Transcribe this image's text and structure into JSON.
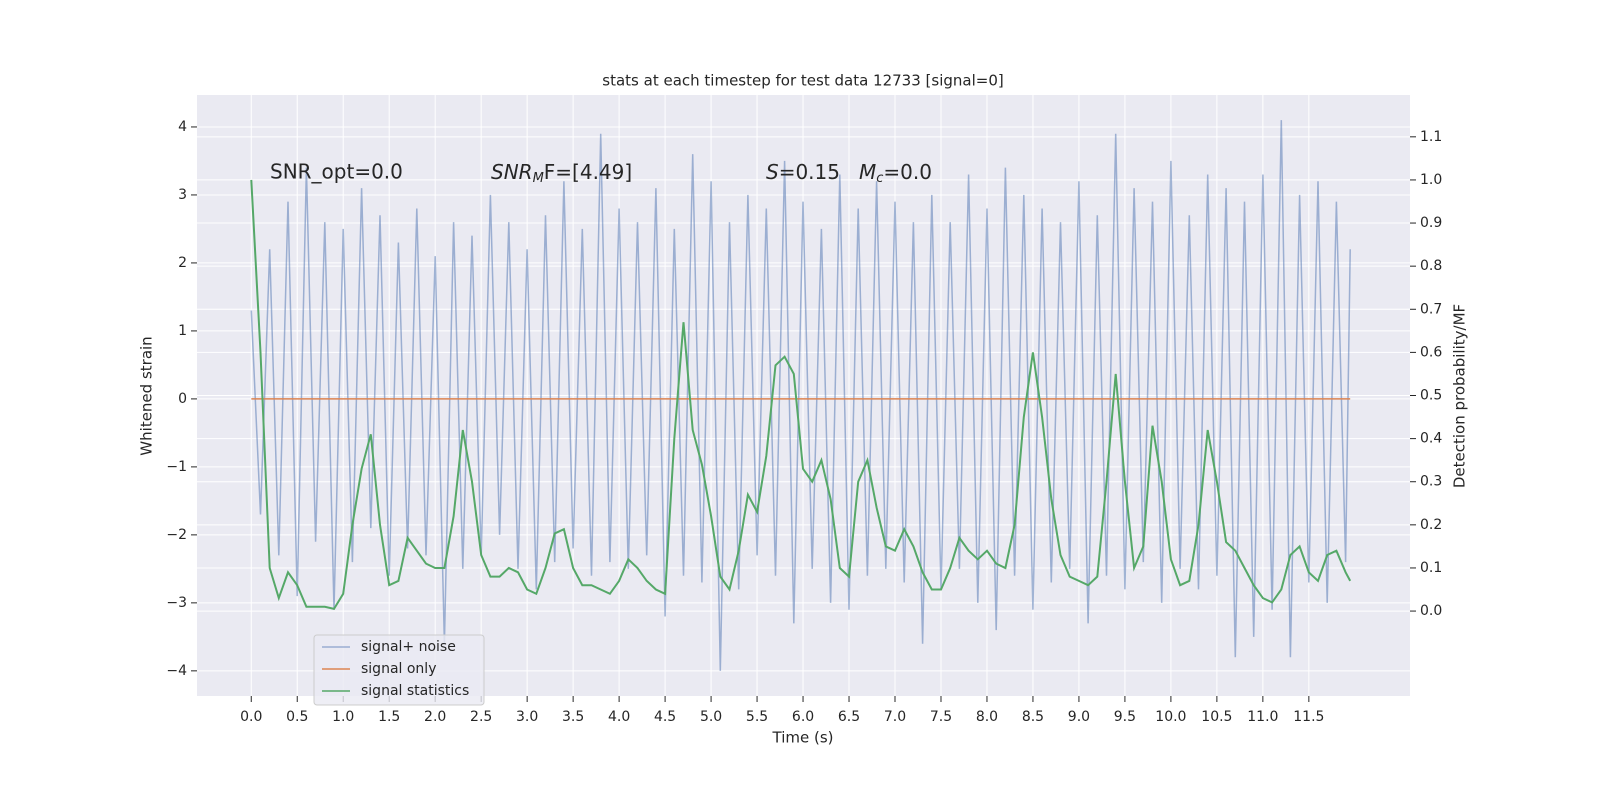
{
  "chart_data": {
    "type": "line",
    "title": "stats at each timestep for test data 12733 [signal=0]",
    "xlabel": "Time (s)",
    "ylabel": "Whitened strain",
    "y2label": "Detection probability/MF",
    "annotations": [
      {
        "text": "SNR_opt=0.0"
      },
      {
        "base": "SNR",
        "sub": "M",
        "rest": "F=[4.49]"
      },
      {
        "base": "S",
        "rest": "=0.15"
      },
      {
        "base": "M",
        "sub": "c",
        "rest": "=0.0"
      }
    ],
    "x": [
      0,
      0.1,
      0.2,
      0.3,
      0.4,
      0.5,
      0.6,
      0.7,
      0.8,
      0.9,
      1.0,
      1.1,
      1.2,
      1.3,
      1.4,
      1.5,
      1.6,
      1.7,
      1.8,
      1.9,
      2.0,
      2.1,
      2.2,
      2.3,
      2.4,
      2.5,
      2.6,
      2.7,
      2.8,
      2.9,
      3.0,
      3.1,
      3.2,
      3.3,
      3.4,
      3.5,
      3.6,
      3.7,
      3.8,
      3.9,
      4.0,
      4.1,
      4.2,
      4.3,
      4.4,
      4.5,
      4.6,
      4.7,
      4.8,
      4.9,
      5.0,
      5.1,
      5.2,
      5.3,
      5.4,
      5.5,
      5.6,
      5.7,
      5.8,
      5.9,
      6.0,
      6.1,
      6.2,
      6.3,
      6.4,
      6.5,
      6.6,
      6.7,
      6.8,
      6.9,
      7.0,
      7.1,
      7.2,
      7.3,
      7.4,
      7.5,
      7.6,
      7.7,
      7.8,
      7.9,
      8.0,
      8.1,
      8.2,
      8.3,
      8.4,
      8.5,
      8.6,
      8.7,
      8.8,
      8.9,
      9.0,
      9.1,
      9.2,
      9.3,
      9.4,
      9.5,
      9.6,
      9.7,
      9.8,
      9.9,
      10.0,
      10.1,
      10.2,
      10.3,
      10.4,
      10.5,
      10.6,
      10.7,
      10.8,
      10.9,
      11.0,
      11.1,
      11.2,
      11.3,
      11.4,
      11.5,
      11.6,
      11.7,
      11.8,
      11.9,
      11.95
    ],
    "series": [
      {
        "name": "signal+ noise",
        "color": "#4c72b0",
        "alpha": 0.5,
        "values": [
          1.3,
          -1.7,
          2.2,
          -2.3,
          2.9,
          -2.9,
          3.4,
          -2.1,
          2.6,
          -3.1,
          2.5,
          -2.4,
          3.1,
          -1.9,
          2.7,
          -2.6,
          2.3,
          -2.2,
          2.8,
          -2.3,
          2.1,
          -3.6,
          2.6,
          -2.5,
          2.4,
          -2.3,
          3.0,
          -2.0,
          2.6,
          -2.5,
          2.2,
          -2.8,
          2.7,
          -2.4,
          3.2,
          -2.2,
          2.5,
          -2.6,
          3.9,
          -2.4,
          2.8,
          -2.5,
          2.6,
          -2.3,
          3.1,
          -3.2,
          2.5,
          -2.6,
          3.6,
          -2.7,
          3.2,
          -4.0,
          2.6,
          -2.8,
          3.0,
          -2.3,
          2.8,
          -2.6,
          3.5,
          -3.3,
          2.9,
          -2.5,
          2.5,
          -3.0,
          3.3,
          -3.1,
          2.8,
          -2.6,
          3.2,
          -2.5,
          2.9,
          -2.7,
          2.6,
          -3.6,
          3.0,
          -2.8,
          2.6,
          -2.5,
          3.3,
          -3.0,
          2.8,
          -3.4,
          3.4,
          -2.6,
          3.0,
          -3.1,
          2.8,
          -2.7,
          2.6,
          -2.5,
          3.2,
          -3.3,
          2.7,
          -2.6,
          3.9,
          -2.8,
          3.1,
          -2.4,
          2.9,
          -3.0,
          3.5,
          -2.5,
          2.7,
          -2.8,
          3.3,
          -2.6,
          3.1,
          -3.8,
          2.9,
          -3.5,
          3.3,
          -3.1,
          4.1,
          -3.8,
          3.0,
          -2.7,
          3.2,
          -3.0,
          2.9,
          -2.4,
          2.2
        ]
      },
      {
        "name": "signal only",
        "color": "#dd8452",
        "x": [
          0,
          11.95
        ],
        "values": [
          0,
          0
        ]
      },
      {
        "name": "signal statistics",
        "color": "#55a868",
        "axis": "y2",
        "values": [
          1.0,
          0.6,
          0.1,
          0.03,
          0.09,
          0.06,
          0.01,
          0.01,
          0.01,
          0.005,
          0.04,
          0.2,
          0.33,
          0.41,
          0.2,
          0.06,
          0.07,
          0.17,
          0.14,
          0.11,
          0.1,
          0.1,
          0.22,
          0.42,
          0.3,
          0.13,
          0.08,
          0.08,
          0.1,
          0.09,
          0.05,
          0.04,
          0.1,
          0.18,
          0.19,
          0.1,
          0.06,
          0.06,
          0.05,
          0.04,
          0.07,
          0.12,
          0.1,
          0.07,
          0.05,
          0.04,
          0.4,
          0.67,
          0.42,
          0.34,
          0.22,
          0.08,
          0.05,
          0.14,
          0.27,
          0.23,
          0.36,
          0.57,
          0.59,
          0.55,
          0.33,
          0.3,
          0.35,
          0.26,
          0.1,
          0.08,
          0.3,
          0.35,
          0.24,
          0.15,
          0.14,
          0.19,
          0.15,
          0.09,
          0.05,
          0.05,
          0.1,
          0.17,
          0.14,
          0.12,
          0.14,
          0.11,
          0.1,
          0.2,
          0.45,
          0.6,
          0.45,
          0.26,
          0.13,
          0.08,
          0.07,
          0.06,
          0.08,
          0.3,
          0.55,
          0.3,
          0.1,
          0.15,
          0.43,
          0.3,
          0.12,
          0.06,
          0.07,
          0.2,
          0.42,
          0.3,
          0.16,
          0.14,
          0.1,
          0.06,
          0.03,
          0.02,
          0.05,
          0.13,
          0.15,
          0.09,
          0.07,
          0.13,
          0.14,
          0.09,
          0.07
        ]
      }
    ],
    "xlim": [
      -0.59,
      12.6
    ],
    "ylim": [
      -4.37,
      4.47
    ],
    "y2lim": [
      -0.197,
      1.197
    ],
    "xticks": [
      {
        "value": 0,
        "label": "0.0"
      },
      {
        "value": 0.5,
        "label": "0.5"
      },
      {
        "value": 1,
        "label": "1.0"
      },
      {
        "value": 1.5,
        "label": "1.5"
      },
      {
        "value": 2,
        "label": "2.0"
      },
      {
        "value": 2.5,
        "label": "2.5"
      },
      {
        "value": 3,
        "label": "3.0"
      },
      {
        "value": 3.5,
        "label": "3.5"
      },
      {
        "value": 4,
        "label": "4.0"
      },
      {
        "value": 4.5,
        "label": "4.5"
      },
      {
        "value": 5,
        "label": "5.0"
      },
      {
        "value": 5.5,
        "label": "5.5"
      },
      {
        "value": 6,
        "label": "6.0"
      },
      {
        "value": 6.5,
        "label": "6.5"
      },
      {
        "value": 7,
        "label": "7.0"
      },
      {
        "value": 7.5,
        "label": "7.5"
      },
      {
        "value": 8,
        "label": "8.0"
      },
      {
        "value": 8.5,
        "label": "8.5"
      },
      {
        "value": 9,
        "label": "9.0"
      },
      {
        "value": 9.5,
        "label": "9.5"
      },
      {
        "value": 10,
        "label": "10.0"
      },
      {
        "value": 10.5,
        "label": "10.5"
      },
      {
        "value": 11,
        "label": "11.0"
      },
      {
        "value": 11.5,
        "label": "11.5"
      }
    ],
    "yticks": [
      {
        "value": -4,
        "label": "−4"
      },
      {
        "value": -3,
        "label": "−3"
      },
      {
        "value": -2,
        "label": "−2"
      },
      {
        "value": -1,
        "label": "−1"
      },
      0,
      1,
      2,
      3,
      4
    ],
    "y2ticks": [
      {
        "value": 0,
        "label": "0.0"
      },
      {
        "value": 0.1,
        "label": "0.1"
      },
      {
        "value": 0.2,
        "label": "0.2"
      },
      {
        "value": 0.3,
        "label": "0.3"
      },
      {
        "value": 0.4,
        "label": "0.4"
      },
      {
        "value": 0.5,
        "label": "0.5"
      },
      {
        "value": 0.6,
        "label": "0.6"
      },
      {
        "value": 0.7,
        "label": "0.7"
      },
      {
        "value": 0.8,
        "label": "0.8"
      },
      {
        "value": 0.9,
        "label": "0.9"
      },
      {
        "value": 1.0,
        "label": "1.0"
      },
      {
        "value": 1.1,
        "label": "1.1"
      }
    ],
    "grid": true,
    "background": "#eaeaf2",
    "legend": "lower left"
  }
}
